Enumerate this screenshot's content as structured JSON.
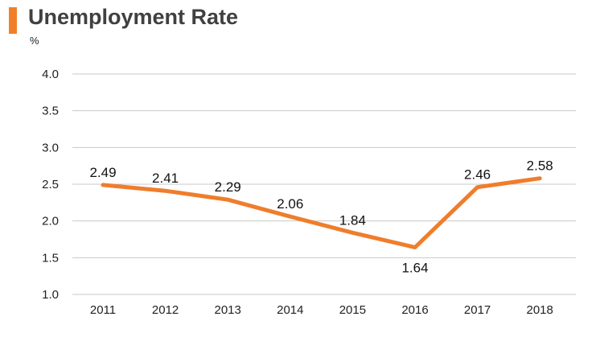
{
  "header": {
    "title": "Unemployment Rate",
    "unit": "%"
  },
  "colors": {
    "accent": "#f07f2a",
    "line": "#ef7d2c",
    "grid": "#c8c8c8"
  },
  "chart_data": {
    "type": "line",
    "title": "Unemployment Rate",
    "ylabel": "%",
    "xlabel": "",
    "x": [
      "2011",
      "2012",
      "2013",
      "2014",
      "2015",
      "2016",
      "2017",
      "2018"
    ],
    "series": [
      {
        "values": [
          2.49,
          2.41,
          2.29,
          2.06,
          1.84,
          1.64,
          2.46,
          2.58
        ],
        "labels": [
          "2.49",
          "2.41",
          "2.29",
          "2.06",
          "1.84",
          "1.64",
          "2.46",
          "2.58"
        ]
      }
    ],
    "ylim": [
      1.0,
      4.0
    ],
    "yticks": [
      "1.0",
      "1.5",
      "2.0",
      "2.5",
      "3.0",
      "3.5",
      "4.0"
    ],
    "grid": true,
    "legend": "none"
  }
}
